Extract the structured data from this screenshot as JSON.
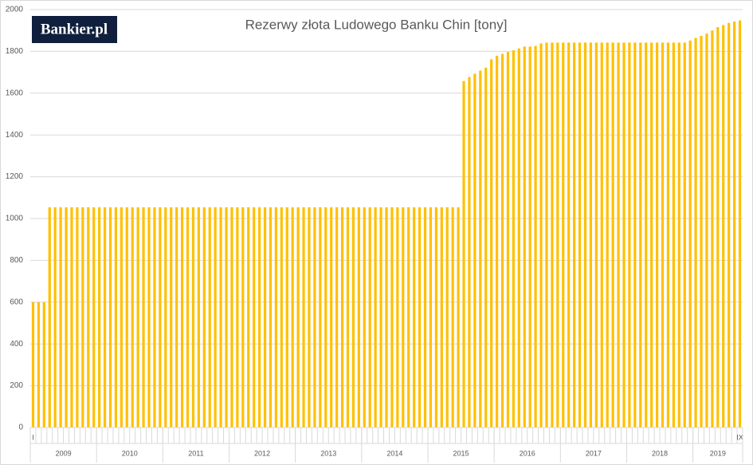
{
  "chart_data": {
    "type": "bar",
    "title": "Rezerwy złota Ludowego Banku Chin [tony]",
    "logo": "Bankier.pl",
    "categories": [
      "I",
      null,
      null,
      null,
      null,
      null,
      null,
      null,
      null,
      null,
      null,
      null,
      null,
      null,
      null,
      null,
      null,
      null,
      null,
      null,
      null,
      null,
      null,
      null,
      null,
      null,
      null,
      null,
      null,
      null,
      null,
      null,
      null,
      null,
      null,
      null,
      null,
      null,
      null,
      null,
      null,
      null,
      null,
      null,
      null,
      null,
      null,
      null,
      null,
      null,
      null,
      null,
      null,
      null,
      null,
      null,
      null,
      null,
      null,
      null,
      null,
      null,
      null,
      null,
      null,
      null,
      null,
      null,
      null,
      null,
      null,
      null,
      null,
      null,
      null,
      null,
      null,
      null,
      null,
      null,
      null,
      null,
      null,
      null,
      null,
      null,
      null,
      null,
      null,
      null,
      null,
      null,
      null,
      null,
      null,
      null,
      null,
      null,
      null,
      null,
      null,
      null,
      null,
      null,
      null,
      null,
      null,
      null,
      null,
      null,
      null,
      null,
      null,
      null,
      null,
      null,
      null,
      null,
      null,
      null,
      null,
      null,
      null,
      null,
      null,
      null,
      null,
      null,
      "IX"
    ],
    "groups": [
      "2009",
      "2010",
      "2011",
      "2012",
      "2013",
      "2014",
      "2015",
      "2016",
      "2017",
      "2018",
      "2019"
    ],
    "values": [
      600,
      600,
      600,
      1054,
      1054,
      1054,
      1054,
      1054,
      1054,
      1054,
      1054,
      1054,
      1054,
      1054,
      1054,
      1054,
      1054,
      1054,
      1054,
      1054,
      1054,
      1054,
      1054,
      1054,
      1054,
      1054,
      1054,
      1054,
      1054,
      1054,
      1054,
      1054,
      1054,
      1054,
      1054,
      1054,
      1054,
      1054,
      1054,
      1054,
      1054,
      1054,
      1054,
      1054,
      1054,
      1054,
      1054,
      1054,
      1054,
      1054,
      1054,
      1054,
      1054,
      1054,
      1054,
      1054,
      1054,
      1054,
      1054,
      1054,
      1054,
      1054,
      1054,
      1054,
      1054,
      1054,
      1054,
      1054,
      1054,
      1054,
      1054,
      1054,
      1054,
      1054,
      1054,
      1054,
      1054,
      1054,
      1658,
      1677,
      1693,
      1708,
      1722,
      1762,
      1779,
      1788,
      1797,
      1805,
      1814,
      1823,
      1823,
      1826,
      1838,
      1842,
      1842,
      1842,
      1842,
      1842,
      1842,
      1842,
      1842,
      1842,
      1842,
      1842,
      1842,
      1842,
      1842,
      1842,
      1842,
      1842,
      1842,
      1842,
      1842,
      1842,
      1842,
      1842,
      1842,
      1842,
      1842,
      1852,
      1864,
      1874,
      1885,
      1900,
      1916,
      1926,
      1936,
      1943,
      1948
    ],
    "color": "#ffc000",
    "ylim": [
      0,
      2000
    ],
    "yticks": [
      0,
      200,
      400,
      600,
      800,
      1000,
      1200,
      1400,
      1600,
      1800,
      2000
    ],
    "grid": true
  }
}
